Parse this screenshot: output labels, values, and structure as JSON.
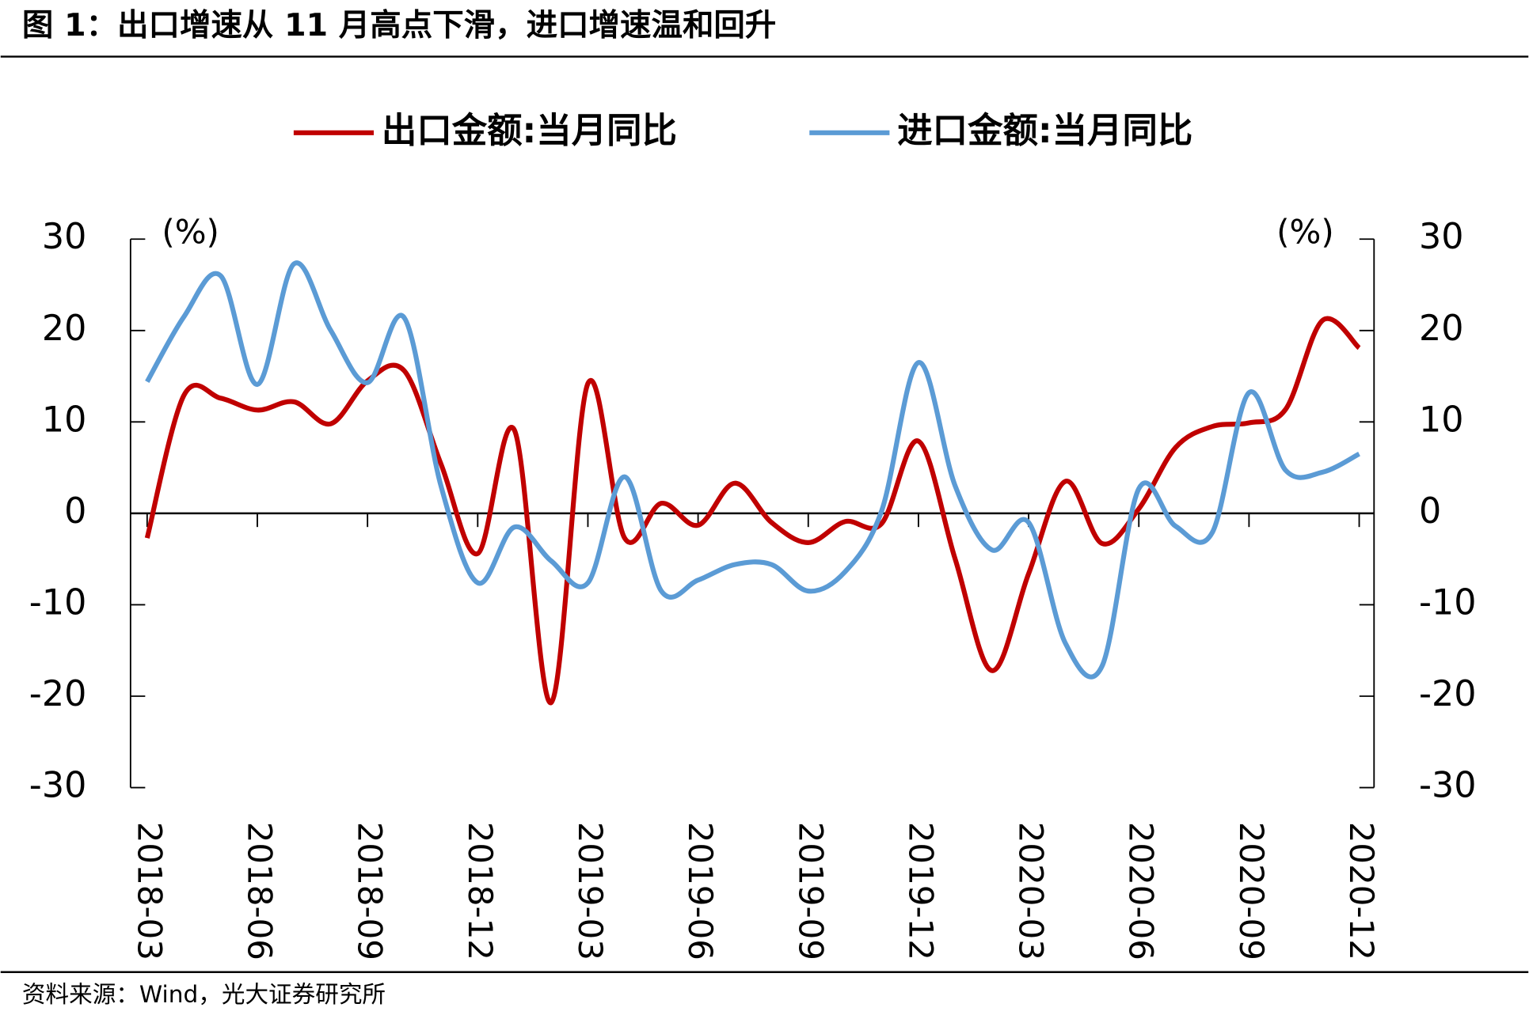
{
  "chart_data": {
    "type": "line",
    "title": "图 1：出口增速从 11 月高点下滑，进口增速温和回升",
    "source": "资料来源：Wind，光大证券研究所",
    "y_label": "(%)",
    "y2_label": "(%)",
    "categories": [
      "2018-03",
      null,
      null,
      "2018-06",
      null,
      null,
      "2018-09",
      null,
      null,
      "2018-12",
      null,
      null,
      "2019-03",
      null,
      null,
      "2019-06",
      null,
      null,
      "2019-09",
      null,
      null,
      "2019-12",
      null,
      null,
      "2020-03",
      null,
      null,
      "2020-06",
      null,
      null,
      "2020-09",
      null,
      null,
      "2020-12"
    ],
    "series": [
      {
        "name": "出口金额:当月同比",
        "color": "#c00000",
        "values": [
          -2.7,
          12.9,
          12.6,
          11.3,
          12.2,
          9.8,
          14.5,
          15.6,
          5.4,
          -4.4,
          9.1,
          -20.7,
          14.2,
          -2.7,
          1.1,
          -1.3,
          3.3,
          -1.0,
          -3.2,
          -0.9,
          -1.1,
          7.9,
          -5,
          -17.2,
          -6.6,
          3.5,
          -3.3,
          0.5,
          7.2,
          9.5,
          9.9,
          11.4,
          21.1,
          18.1
        ]
      },
      {
        "name": "进口金额:当月同比",
        "color": "#5b9bd5",
        "values": [
          14.4,
          21.5,
          26,
          14.1,
          27.3,
          20,
          14.3,
          21.4,
          3,
          -7.6,
          -1.5,
          -5.2,
          -7.6,
          4,
          -8.5,
          -7.3,
          -5.6,
          -5.6,
          -8.5,
          -6.4,
          0.3,
          16.5,
          3,
          -4,
          -1,
          -14.2,
          -16.7,
          2.7,
          -1.4,
          -2.1,
          13.2,
          4.7,
          4.5,
          6.5
        ]
      }
    ],
    "ylim": [
      -30,
      30
    ],
    "yticks": [
      -30,
      -20,
      -10,
      0,
      10,
      20,
      30
    ],
    "y2lim": [
      -30,
      30
    ],
    "y2ticks": [
      -30,
      -20,
      -10,
      0,
      10,
      20,
      30
    ],
    "legend": "top"
  }
}
